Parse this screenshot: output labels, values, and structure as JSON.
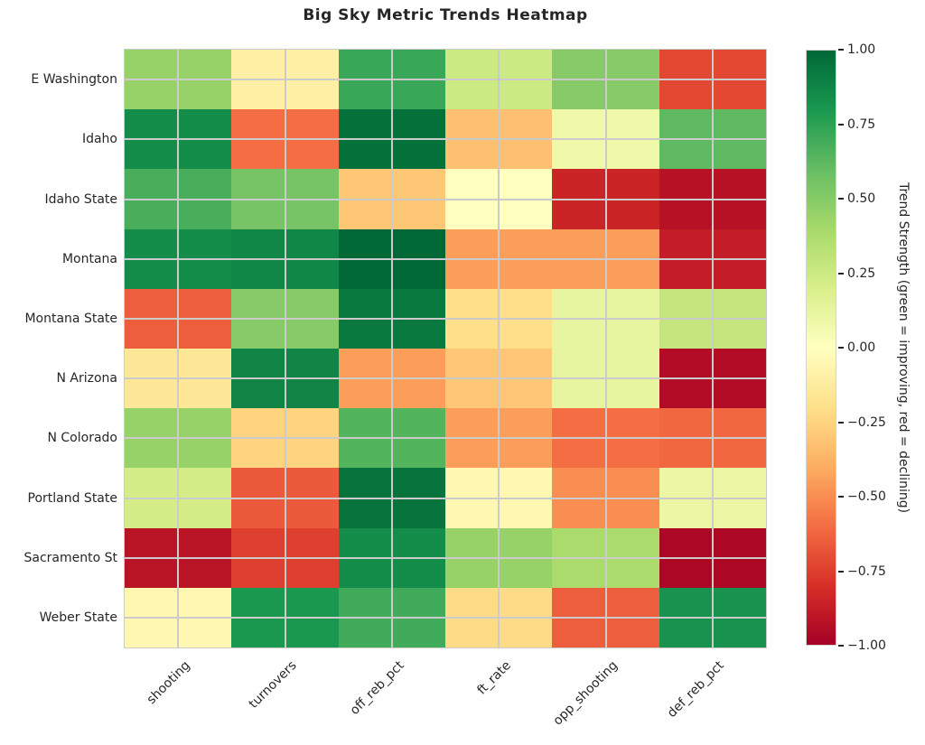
{
  "title": "Big Sky Metric Trends Heatmap",
  "text_color": "#262626",
  "chart_data": {
    "type": "heatmap",
    "title": "Big Sky Metric Trends Heatmap",
    "rows": [
      "E Washington",
      "Idaho",
      "Idaho State",
      "Montana",
      "Montana State",
      "N Arizona",
      "N Colorado",
      "Portland State",
      "Sacramento St",
      "Weber State"
    ],
    "columns": [
      "shooting",
      "turnovers",
      "off_reb_pct",
      "ft_rate",
      "opp_shooting",
      "def_reb_pct"
    ],
    "values": [
      [
        0.45,
        -0.1,
        0.72,
        0.25,
        0.5,
        -0.72
      ],
      [
        0.85,
        -0.6,
        0.96,
        -0.33,
        0.08,
        0.62
      ],
      [
        0.68,
        0.55,
        -0.3,
        0.0,
        -0.85,
        -0.93
      ],
      [
        0.85,
        0.87,
        1.0,
        -0.45,
        -0.45,
        -0.88
      ],
      [
        -0.65,
        0.5,
        0.93,
        -0.2,
        0.12,
        0.28
      ],
      [
        -0.15,
        0.88,
        -0.45,
        -0.3,
        0.12,
        -0.95
      ],
      [
        0.45,
        -0.25,
        0.65,
        -0.45,
        -0.6,
        -0.62
      ],
      [
        0.22,
        -0.66,
        0.95,
        -0.05,
        -0.5,
        0.1
      ],
      [
        -0.92,
        -0.75,
        0.85,
        0.45,
        0.38,
        -0.97
      ],
      [
        -0.05,
        0.8,
        0.7,
        -0.22,
        -0.65,
        0.82
      ]
    ],
    "vmin": -1,
    "vmax": 1,
    "colormap_name": "RdYlGn",
    "colormap_stops": [
      "#a50026",
      "#d73027",
      "#f46d43",
      "#fdae61",
      "#fee08b",
      "#ffffbf",
      "#d9ef8b",
      "#a6d96a",
      "#66bd63",
      "#1a9850",
      "#006837"
    ],
    "grid": true,
    "grid_color": "#cbcbcb",
    "legend_position": "right",
    "colorbar": {
      "label": "Trend Strength (green = improving, red = declining)",
      "ticks": [
        {
          "label": "1.00",
          "value": 1.0
        },
        {
          "label": "0.75",
          "value": 0.75
        },
        {
          "label": "0.50",
          "value": 0.5
        },
        {
          "label": "0.25",
          "value": 0.25
        },
        {
          "label": "0.00",
          "value": 0.0
        },
        {
          "label": "−0.25",
          "value": -0.25
        },
        {
          "label": "−0.50",
          "value": -0.5
        },
        {
          "label": "−0.75",
          "value": -0.75
        },
        {
          "label": "−1.00",
          "value": -1.0
        }
      ]
    }
  }
}
